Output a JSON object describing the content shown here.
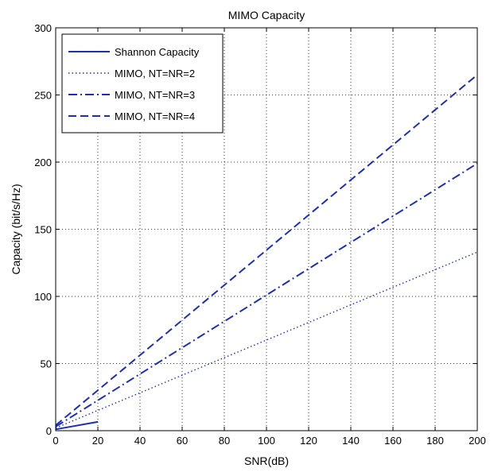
{
  "chart_data": {
    "type": "line",
    "title": "MIMO Capacity",
    "xlabel": "SNR(dB)",
    "ylabel": "Capacity (bit/s/Hz)",
    "xlim": [
      0,
      200
    ],
    "ylim": [
      0,
      300
    ],
    "x_ticks": [
      0,
      20,
      40,
      60,
      80,
      100,
      120,
      140,
      160,
      180,
      200
    ],
    "y_ticks": [
      0,
      50,
      100,
      150,
      200,
      250,
      300
    ],
    "grid": true,
    "legend_position": "top-left",
    "line_color": "#1f2fb0",
    "series": [
      {
        "name": "Shannon Capacity",
        "style": "solid",
        "x": [
          0,
          20
        ],
        "y": [
          1,
          6.6
        ]
      },
      {
        "name": "MIMO, NT=NR=2",
        "style": "dotted",
        "x": [
          0,
          200
        ],
        "y": [
          2,
          133
        ]
      },
      {
        "name": "MIMO, NT=NR=3",
        "style": "dashdot",
        "x": [
          0,
          200
        ],
        "y": [
          3,
          199
        ]
      },
      {
        "name": "MIMO, NT=NR=4",
        "style": "dashed",
        "x": [
          0,
          200
        ],
        "y": [
          4,
          265
        ]
      }
    ]
  }
}
